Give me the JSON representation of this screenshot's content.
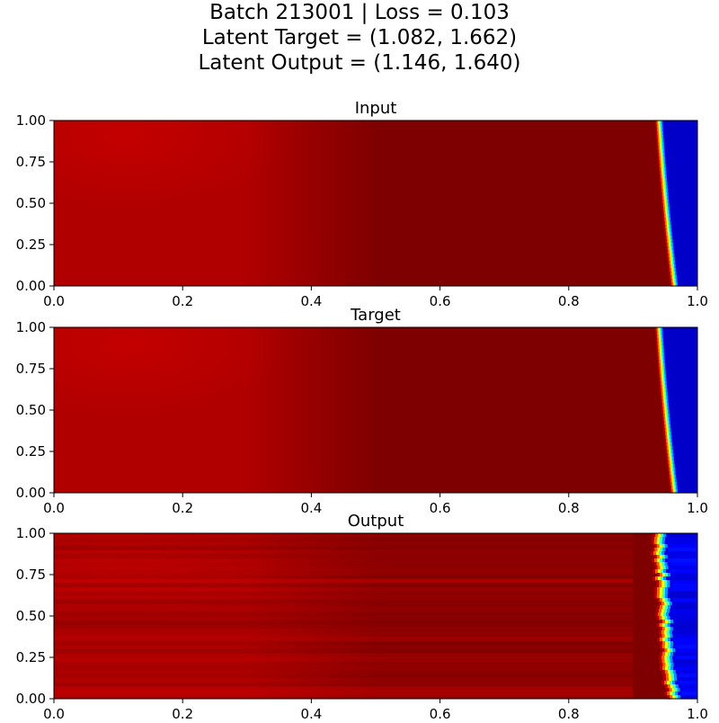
{
  "title_lines": [
    "Batch 213001  |  Loss = 0.103",
    "Latent Target = (1.082, 1.662)",
    "Latent Output = (1.146, 1.640)"
  ],
  "colors": {
    "field_dark": "#7f0000",
    "field_mid": "#b00000",
    "field_light": "#c80000",
    "wall_blue": "#0000c8"
  },
  "chart_data": [
    {
      "type": "heatmap",
      "title": "Input",
      "xlim": [
        0.0,
        1.0
      ],
      "ylim": [
        0.0,
        1.0
      ],
      "xticks": [
        "0.0",
        "0.2",
        "0.4",
        "0.6",
        "0.8",
        "1.0"
      ],
      "yticks": [
        "0.00",
        "0.25",
        "0.50",
        "0.75",
        "1.00"
      ],
      "front": {
        "x_top": 0.948,
        "x_bottom": 0.972
      },
      "colormap": "jet",
      "noisy": false
    },
    {
      "type": "heatmap",
      "title": "Target",
      "xlim": [
        0.0,
        1.0
      ],
      "ylim": [
        0.0,
        1.0
      ],
      "xticks": [
        "0.0",
        "0.2",
        "0.4",
        "0.6",
        "0.8",
        "1.0"
      ],
      "yticks": [
        "0.00",
        "0.25",
        "0.50",
        "0.75",
        "1.00"
      ],
      "front": {
        "x_top": 0.948,
        "x_bottom": 0.972
      },
      "colormap": "jet",
      "noisy": false
    },
    {
      "type": "heatmap",
      "title": "Output",
      "xlim": [
        0.0,
        1.0
      ],
      "ylim": [
        0.0,
        1.0
      ],
      "xticks": [
        "0.0",
        "0.2",
        "0.4",
        "0.6",
        "0.8",
        "1.0"
      ],
      "yticks": [
        "0.00",
        "0.25",
        "0.50",
        "0.75",
        "1.00"
      ],
      "front": {
        "x_top": 0.955,
        "x_bottom": 0.975
      },
      "colormap": "jet",
      "noisy": true
    }
  ]
}
